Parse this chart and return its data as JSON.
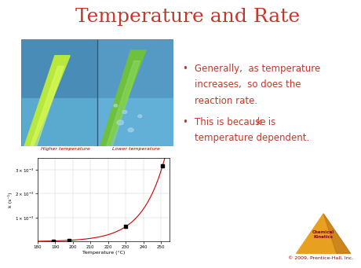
{
  "title": "Temperature and Rate",
  "title_color": "#C0392B",
  "title_fontsize": 18,
  "bullet1_line1": "Generally,  as temperature",
  "bullet1_line2": "increases,  so does the",
  "bullet1_line3": "reaction rate.",
  "bullet2_line1": "This is because κ is",
  "bullet2_line2": "temperature dependent.",
  "bullet_color": "#C0392B",
  "bullet_fontsize": 8.5,
  "img_label_left": "Higher temperature",
  "img_label_right": "Lower temperature",
  "img_label_color": "#8B0000",
  "img_label_fontsize": 4.5,
  "graph_xlabel": "Temperature (°C)",
  "graph_ylabel": "k (s⁻¹)",
  "graph_xlabel_fontsize": 4.5,
  "graph_ylabel_fontsize": 4.5,
  "graph_tick_fontsize": 4,
  "graph_line_color": "#CC0000",
  "graph_bg": "#FFFFFF",
  "data_points_x": [
    189,
    198,
    230,
    251
  ],
  "data_points_y": [
    2.52e-05,
    5.25e-05,
    0.00063,
    0.00316
  ],
  "xmin": 180,
  "xmax": 255,
  "ymin": 0,
  "ymax": 0.0035,
  "yticks": [
    0.001,
    0.002,
    0.003
  ],
  "xticks": [
    180,
    190,
    200,
    210,
    220,
    230,
    240,
    250
  ],
  "copyright": "© 2009, Prentice-Hall, Inc.",
  "copyright_color": "#8B0000",
  "copyright_fontsize": 4.5,
  "chemical_kinetics_color": "#8B0000",
  "triangle_color": "#E8A020",
  "triangle_dark": "#B8721A",
  "background_color": "#FFFFFF",
  "photo_bg": "#4A8AB5",
  "photo_bg2": "#5BA3C9",
  "photo_divider": "#3A7AA8"
}
